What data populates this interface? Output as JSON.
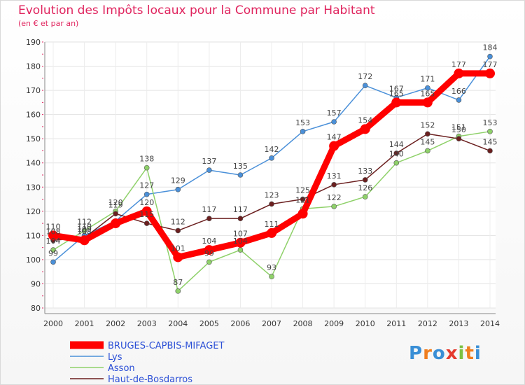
{
  "title": "Evolution des Impôts locaux pour la Commune par Habitant",
  "subtitle": "(en € et par an)",
  "logo": {
    "text": "Proxiti",
    "letter_colors": [
      "#3a8fd6",
      "#f07e1e",
      "#3a8fd6",
      "#e53b2f",
      "#7cc142",
      "#f07e1e",
      "#3a8fd6"
    ]
  },
  "chart_data": {
    "type": "line",
    "title": "Evolution des Impôts locaux pour la Commune par Habitant",
    "subtitle": "(en € et par an)",
    "x": [
      "2000",
      "2001",
      "2002",
      "2003",
      "2004",
      "2005",
      "2006",
      "2007",
      "2008",
      "2009",
      "2010",
      "2011",
      "2012",
      "2013",
      "2014"
    ],
    "ylim": [
      80,
      190
    ],
    "yticks": [
      80,
      90,
      100,
      110,
      120,
      130,
      140,
      150,
      160,
      170,
      180,
      190
    ],
    "grid": true,
    "legend_position": "bottom-left",
    "series": [
      {
        "name": "BRUGES-CAPBIS-MIFAGET",
        "color": "#ff0000",
        "values": [
          110,
          108,
          115,
          120,
          101,
          104,
          107,
          111,
          119,
          147,
          154,
          165,
          165,
          177,
          177
        ],
        "labels": [
          "110",
          "108",
          "",
          "120",
          "101",
          "104",
          "107",
          "111",
          "",
          "147",
          "154",
          "165",
          "165",
          "177",
          "177"
        ]
      },
      {
        "name": "Lys",
        "color": "#4a90d9",
        "values": [
          99,
          110,
          116,
          127,
          129,
          137,
          135,
          142,
          153,
          157,
          172,
          167,
          171,
          166,
          184
        ],
        "labels": [
          "99",
          "110",
          "",
          "127",
          "129",
          "137",
          "135",
          "142",
          "153",
          "157",
          "172",
          "167",
          "171",
          "166",
          "184"
        ]
      },
      {
        "name": "Asson",
        "color": "#8fd16a",
        "values": [
          104,
          112,
          120,
          138,
          87,
          99,
          104,
          93,
          121,
          122,
          126,
          140,
          145,
          151,
          153
        ],
        "labels": [
          "104",
          "112",
          "120",
          "138",
          "87",
          "99",
          "104",
          "93",
          "121",
          "122",
          "126",
          "140",
          "145",
          "151",
          "153"
        ]
      },
      {
        "name": "Haut-de-Bosdarros",
        "color": "#6b1f1f",
        "values": [
          108,
          109,
          119,
          115,
          112,
          117,
          117,
          123,
          125,
          131,
          133,
          144,
          152,
          150,
          145
        ],
        "labels": [
          "108",
          "109",
          "119",
          "115",
          "112",
          "117",
          "117",
          "123",
          "125",
          "131",
          "133",
          "144",
          "152",
          "150",
          "145"
        ]
      }
    ]
  }
}
